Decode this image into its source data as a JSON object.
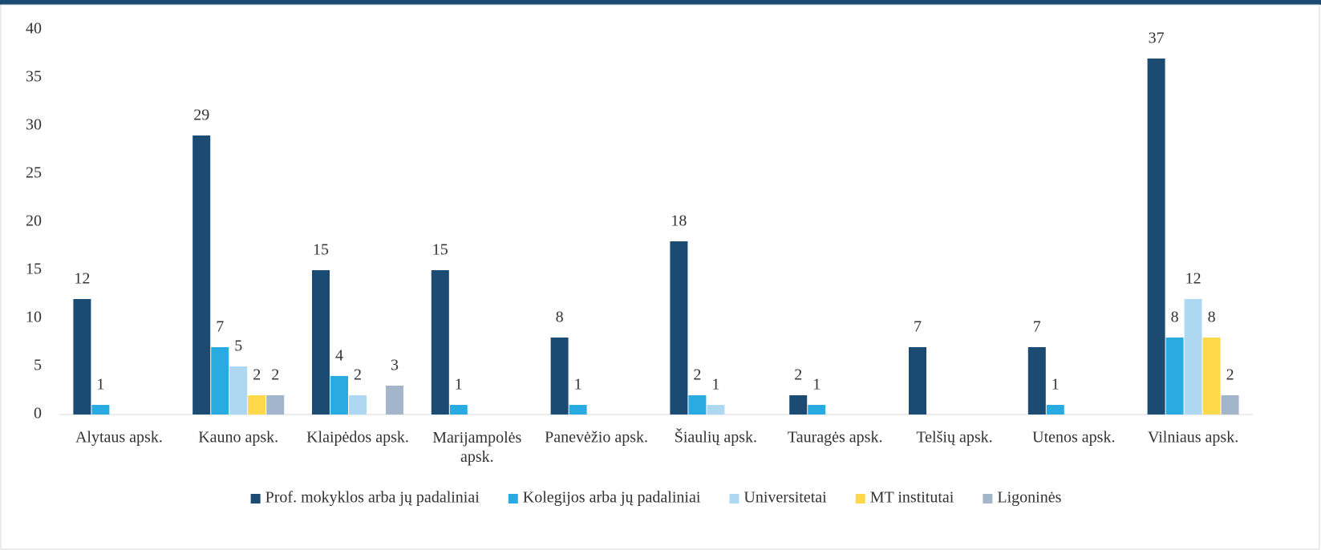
{
  "chart_data": {
    "type": "bar",
    "categories": [
      "Alytaus apsk.",
      "Kauno apsk.",
      "Klaipėdos apsk.",
      "Marijampolės apsk.",
      "Panevėžio apsk.",
      "Šiaulių apsk.",
      "Tauragės apsk.",
      "Telšių apsk.",
      "Utenos apsk.",
      "Vilniaus apsk."
    ],
    "series": [
      {
        "name": "Prof. mokyklos arba jų padaliniai",
        "color": "#1b4a72",
        "values": [
          12,
          29,
          15,
          15,
          8,
          18,
          2,
          7,
          7,
          37
        ]
      },
      {
        "name": "Kolegijos arba jų padaliniai",
        "color": "#29abe2",
        "values": [
          1,
          7,
          4,
          1,
          1,
          2,
          1,
          null,
          1,
          8
        ]
      },
      {
        "name": "Universitetai",
        "color": "#aed8f2",
        "values": [
          null,
          5,
          2,
          null,
          null,
          1,
          null,
          null,
          null,
          12
        ]
      },
      {
        "name": "MT institutai",
        "color": "#ffd94a",
        "values": [
          null,
          2,
          null,
          null,
          null,
          null,
          null,
          null,
          null,
          8
        ]
      },
      {
        "name": "Ligoninės",
        "color": "#a3b5cb",
        "values": [
          null,
          2,
          3,
          null,
          null,
          null,
          null,
          null,
          null,
          2
        ]
      }
    ],
    "ylim": [
      0,
      40
    ],
    "yticks": [
      0,
      5,
      10,
      15,
      20,
      25,
      30,
      35,
      40
    ],
    "grid": false,
    "legend": "bottom"
  }
}
